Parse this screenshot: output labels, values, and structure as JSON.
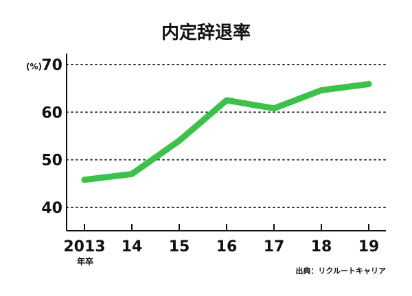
{
  "chart_data": {
    "type": "line",
    "title": "内定辞退率",
    "unit": "(%)",
    "categories": [
      "2013",
      "14",
      "15",
      "16",
      "17",
      "18",
      "19"
    ],
    "x_sublabel": "年卒",
    "series": [
      {
        "values": [
          45.8,
          47.0,
          54.0,
          62.5,
          60.8,
          64.6,
          65.9
        ]
      }
    ],
    "yticks": [
      40,
      50,
      60,
      70
    ],
    "ylim": [
      35,
      71
    ],
    "grid": "horizontal dotted",
    "source": "出典：リクルートキャリア"
  },
  "colors": {
    "line": "#3cc24a",
    "axis": "#111111",
    "grid": "#333333"
  }
}
